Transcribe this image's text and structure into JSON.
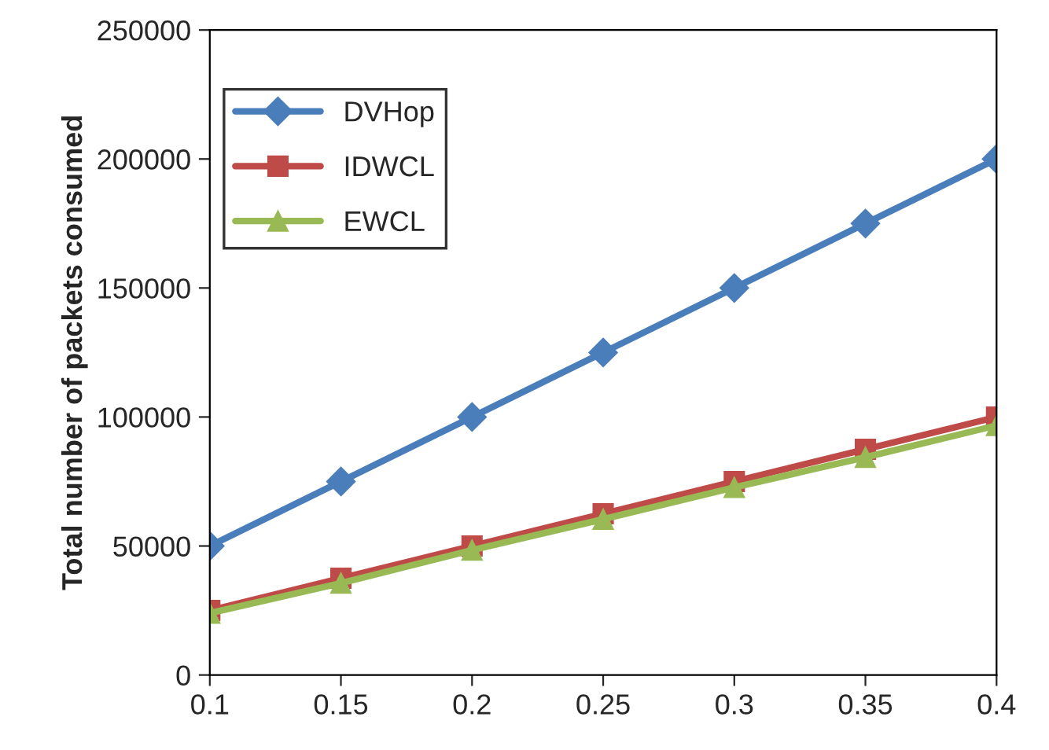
{
  "chart_data": {
    "type": "line",
    "ylabel": "Total number of packets consumed",
    "categories": [
      "0.1",
      "0.15",
      "0.2",
      "0.25",
      "0.3",
      "0.35",
      "0.4"
    ],
    "series": [
      {
        "name": "DVHop",
        "color": "#4a7ebb",
        "marker": "diamond",
        "values": [
          50000,
          75000,
          100000,
          125000,
          150000,
          175000,
          200000
        ]
      },
      {
        "name": "IDWCL",
        "color": "#be4b48",
        "marker": "square",
        "values": [
          25000,
          37500,
          50000,
          62500,
          75000,
          87500,
          100000
        ]
      },
      {
        "name": "EWCL",
        "color": "#98b954",
        "marker": "triangle",
        "values": [
          24000,
          35600,
          48400,
          60400,
          72700,
          84400,
          96700
        ]
      }
    ],
    "ylim": [
      0,
      250000
    ],
    "yticks": [
      0,
      50000,
      100000,
      150000,
      200000,
      250000
    ],
    "grid": false,
    "legend": "top left"
  }
}
